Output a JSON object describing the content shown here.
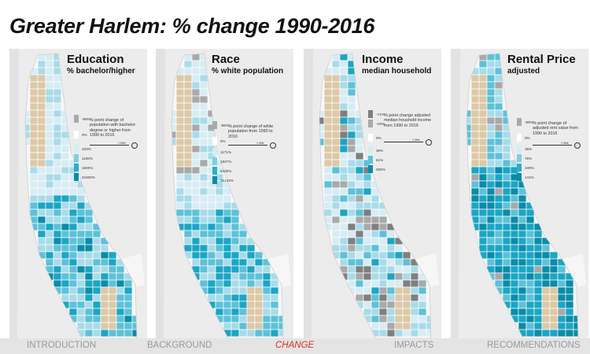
{
  "title": "Greater Harlem: % change 1990-2016",
  "colors": {
    "background": "#eaeaea",
    "water": "#eaeaea",
    "park": "#dcc9a7",
    "no_data": "#c8c8c8",
    "class_scale": [
      "#d7ecf3",
      "#a8dbe9",
      "#5dc1d8",
      "#1aa6c4",
      "#0a8ca9"
    ],
    "neg_scale": [
      "#7f7f7f",
      "#a9a9a9"
    ],
    "active_nav": "#e0301e"
  },
  "panels": [
    {
      "title": "Education",
      "subtitle": "% bachelor/higher",
      "legend_desc": "% point change of population with bachelor degree or higher from 1990 to 2016",
      "legend_values": [
        "-98%",
        "0%",
        "400%",
        "1100%",
        "1800%",
        "42400%"
      ],
      "scale_label": "1 Mile",
      "icon": "north-arrow-icon"
    },
    {
      "title": "Race",
      "subtitle": "% white population",
      "legend_desc": "% point change of white population from 1990 to 2016",
      "legend_values": [
        "-98%",
        "0%",
        "1171%",
        "1847%",
        "5425%",
        "15143%"
      ],
      "scale_label": "1 Mile",
      "icon": "north-arrow-icon"
    },
    {
      "title": "Income",
      "subtitle": "median household",
      "legend_desc": "% point change adjusted median houshold income from 1990 to 2016",
      "legend_values": [
        "-71%",
        "-16%",
        "0%",
        "36%",
        "61%",
        "260%"
      ],
      "scale_label": "1 Mile",
      "icon": "north-arrow-icon"
    },
    {
      "title": "Rental Price",
      "subtitle": "adjusted",
      "legend_desc": "% point change of adjusted rent value from 1990 to 2016",
      "legend_values": [
        "-59%",
        "0%",
        "35%",
        "75%",
        "100%",
        "141%"
      ],
      "scale_label": "1 Mile",
      "icon": "north-arrow-icon"
    }
  ],
  "nav": {
    "items": [
      "INTRODUCTION",
      "BACKGROUND",
      "CHANGE",
      "IMPACTS",
      "RECOMMENDATIONS"
    ],
    "active": "CHANGE"
  }
}
